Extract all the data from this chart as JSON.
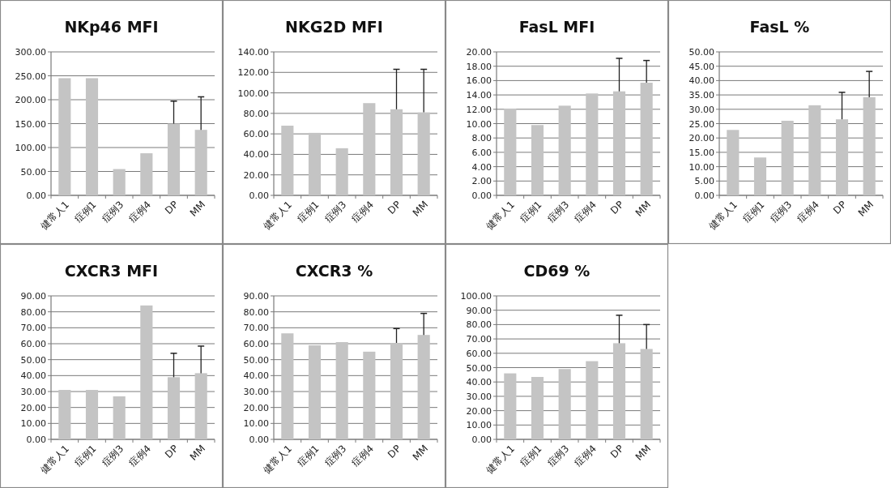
{
  "chart_data": [
    {
      "type": "bar",
      "title": "NKp46 MFI",
      "categories": [
        "健常人1",
        "症例1",
        "症例3",
        "症例4",
        "DP",
        "MM"
      ],
      "values": [
        245,
        245,
        55,
        88,
        150,
        137
      ],
      "errors": [
        null,
        null,
        null,
        null,
        [
          150,
          197
        ],
        [
          137,
          206
        ]
      ],
      "color": "#c4c4c4",
      "grid": "y",
      "ylim": [
        0,
        300
      ],
      "yticks": [
        {
          "value": 0,
          "label": "0.00"
        },
        {
          "value": 50,
          "label": "50.00"
        },
        {
          "value": 100,
          "label": "100.00"
        },
        {
          "value": 150,
          "label": "150.00"
        },
        {
          "value": 200,
          "label": "200.00"
        },
        {
          "value": 250,
          "label": "250.00"
        },
        {
          "value": 300,
          "label": "300.00"
        }
      ]
    },
    {
      "type": "bar",
      "title": "NKG2D MFI",
      "categories": [
        "健常人1",
        "症例1",
        "症例3",
        "症例4",
        "DP",
        "MM"
      ],
      "values": [
        68,
        61,
        46,
        90,
        84,
        81
      ],
      "errors": [
        null,
        null,
        null,
        null,
        [
          84,
          123
        ],
        [
          81,
          123
        ]
      ],
      "color": "#c4c4c4",
      "grid": "y",
      "ylim": [
        0,
        140
      ],
      "yticks": [
        {
          "value": 0,
          "label": "0.00"
        },
        {
          "value": 20,
          "label": "20.00"
        },
        {
          "value": 40,
          "label": "40.00"
        },
        {
          "value": 60,
          "label": "60.00"
        },
        {
          "value": 80,
          "label": "80.00"
        },
        {
          "value": 100,
          "label": "100.00"
        },
        {
          "value": 120,
          "label": "120.00"
        },
        {
          "value": 140,
          "label": "140.00"
        }
      ]
    },
    {
      "type": "bar",
      "title": "FasL MFI",
      "categories": [
        "健常人1",
        "症例1",
        "症例3",
        "症例4",
        "DP",
        "MM"
      ],
      "values": [
        12.1,
        9.8,
        12.5,
        14.2,
        14.5,
        15.7
      ],
      "errors": [
        null,
        null,
        null,
        null,
        [
          14.5,
          19.1
        ],
        [
          15.7,
          18.8
        ]
      ],
      "color": "#c4c4c4",
      "grid": "y",
      "ylim": [
        0,
        20
      ],
      "yticks": [
        {
          "value": 0,
          "label": "0.00"
        },
        {
          "value": 2,
          "label": "2.00"
        },
        {
          "value": 4,
          "label": "4.00"
        },
        {
          "value": 6,
          "label": "6.00"
        },
        {
          "value": 8,
          "label": "8.00"
        },
        {
          "value": 10,
          "label": "10.00"
        },
        {
          "value": 12,
          "label": "12.00"
        },
        {
          "value": 14,
          "label": "14.00"
        },
        {
          "value": 16,
          "label": "16.00"
        },
        {
          "value": 18,
          "label": "18.00"
        },
        {
          "value": 20,
          "label": "20.00"
        }
      ]
    },
    {
      "type": "bar",
      "title": "FasL %",
      "categories": [
        "健常人1",
        "症例1",
        "症例3",
        "症例4",
        "DP",
        "MM"
      ],
      "values": [
        22.8,
        13.2,
        26,
        31.4,
        26.5,
        34.2
      ],
      "errors": [
        null,
        null,
        null,
        null,
        [
          26.5,
          35.9
        ],
        [
          34.2,
          43.2
        ]
      ],
      "color": "#c4c4c4",
      "grid": "y",
      "ylim": [
        0,
        50
      ],
      "yticks": [
        {
          "value": 0,
          "label": "0.00"
        },
        {
          "value": 5,
          "label": "5.00"
        },
        {
          "value": 10,
          "label": "10.00"
        },
        {
          "value": 15,
          "label": "15.00"
        },
        {
          "value": 20,
          "label": "20.00"
        },
        {
          "value": 25,
          "label": "25.00"
        },
        {
          "value": 30,
          "label": "30.00"
        },
        {
          "value": 35,
          "label": "35.00"
        },
        {
          "value": 40,
          "label": "40.00"
        },
        {
          "value": 45,
          "label": "45.00"
        },
        {
          "value": 50,
          "label": "50.00"
        }
      ]
    },
    {
      "type": "bar",
      "title": "CXCR3 MFI",
      "categories": [
        "健常人1",
        "症例1",
        "症例3",
        "症例4",
        "DP",
        "MM"
      ],
      "values": [
        31,
        31,
        27,
        84,
        39,
        41.5
      ],
      "errors": [
        null,
        null,
        null,
        null,
        [
          39,
          54
        ],
        [
          41.5,
          58.5
        ]
      ],
      "color": "#c4c4c4",
      "grid": "y",
      "ylim": [
        0,
        90
      ],
      "yticks": [
        {
          "value": 0,
          "label": "0.00"
        },
        {
          "value": 10,
          "label": "10.00"
        },
        {
          "value": 20,
          "label": "20.00"
        },
        {
          "value": 30,
          "label": "30.00"
        },
        {
          "value": 40,
          "label": "40.00"
        },
        {
          "value": 50,
          "label": "50.00"
        },
        {
          "value": 60,
          "label": "60.00"
        },
        {
          "value": 70,
          "label": "70.00"
        },
        {
          "value": 80,
          "label": "80.00"
        },
        {
          "value": 90,
          "label": "90.00"
        }
      ]
    },
    {
      "type": "bar",
      "title": "CXCR3 %",
      "categories": [
        "健常人1",
        "症例1",
        "症例3",
        "症例4",
        "DP",
        "MM"
      ],
      "values": [
        66.5,
        59,
        61,
        55,
        60.5,
        65.5
      ],
      "errors": [
        null,
        null,
        null,
        null,
        [
          60.5,
          69.5
        ],
        [
          65.5,
          79
        ]
      ],
      "color": "#c4c4c4",
      "grid": "y",
      "ylim": [
        0,
        90
      ],
      "yticks": [
        {
          "value": 0,
          "label": "0.00"
        },
        {
          "value": 10,
          "label": "10.00"
        },
        {
          "value": 20,
          "label": "20.00"
        },
        {
          "value": 30,
          "label": "30.00"
        },
        {
          "value": 40,
          "label": "40.00"
        },
        {
          "value": 50,
          "label": "50.00"
        },
        {
          "value": 60,
          "label": "60.00"
        },
        {
          "value": 70,
          "label": "70.00"
        },
        {
          "value": 80,
          "label": "80.00"
        },
        {
          "value": 90,
          "label": "90.00"
        }
      ]
    },
    {
      "type": "bar",
      "title": "CD69 %",
      "categories": [
        "健常人1",
        "症例1",
        "症例3",
        "症例4",
        "DP",
        "MM"
      ],
      "values": [
        46,
        43.5,
        49,
        54.5,
        67,
        63
      ],
      "errors": [
        null,
        null,
        null,
        null,
        [
          67,
          86.5
        ],
        [
          63,
          80
        ]
      ],
      "color": "#c4c4c4",
      "grid": "y",
      "ylim": [
        0,
        100
      ],
      "yticks": [
        {
          "value": 0,
          "label": "0.00"
        },
        {
          "value": 10,
          "label": "10.00"
        },
        {
          "value": 20,
          "label": "20.00"
        },
        {
          "value": 30,
          "label": "30.00"
        },
        {
          "value": 40,
          "label": "40.00"
        },
        {
          "value": 50,
          "label": "50.00"
        },
        {
          "value": 60,
          "label": "60.00"
        },
        {
          "value": 70,
          "label": "70.00"
        },
        {
          "value": 80,
          "label": "80.00"
        },
        {
          "value": 90,
          "label": "90.00"
        },
        {
          "value": 100,
          "label": "100.00"
        }
      ]
    }
  ]
}
